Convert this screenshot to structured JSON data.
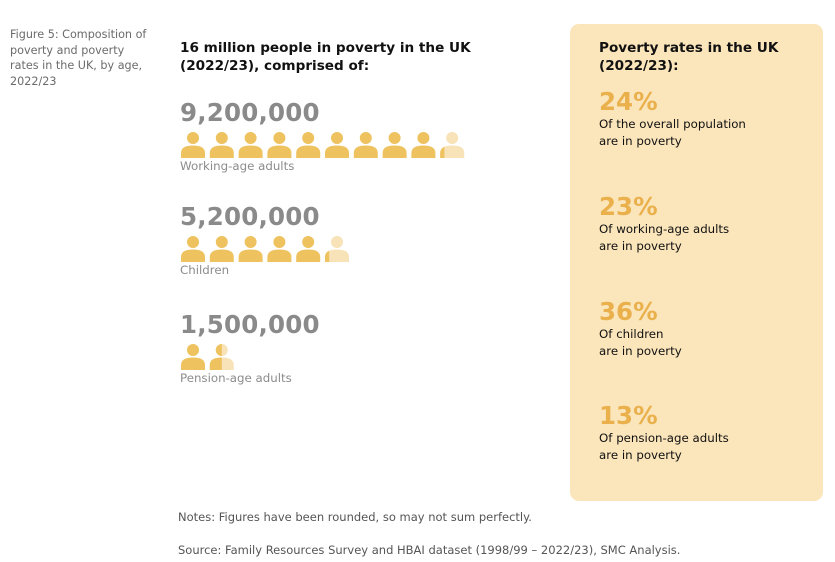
{
  "figure_caption": "Figure 5: Composition of poverty and poverty rates in the UK, by age, 2022/23",
  "headline": "16 million people in poverty in the UK (2022/23), comprised of:",
  "colors": {
    "icon_full": "#eec25e",
    "icon_faded": "#f8e3b8",
    "panel_bg": "#fbe5bb",
    "percent": "#eab04c",
    "count": "#8a8a8a"
  },
  "chart_data": [
    {
      "type": "pictogram",
      "categories": [
        "Working-age adults",
        "Children",
        "Pension-age adults"
      ],
      "values": [
        9200000,
        5200000,
        1500000
      ],
      "value_labels": [
        "9,200,000",
        "5,200,000",
        "1,500,000"
      ],
      "icon_counts": [
        9.2,
        5.2,
        1.5
      ],
      "icon_unit_people": 1000000,
      "title": "16 million people in poverty in the UK (2022/23), comprised of:"
    },
    {
      "type": "table",
      "title": "Poverty rates in the UK (2022/23):",
      "rows": [
        {
          "value": 24,
          "label": "24%",
          "description": "Of the overall population\nare in poverty"
        },
        {
          "value": 23,
          "label": "23%",
          "description": "Of working-age adults\nare in poverty"
        },
        {
          "value": 36,
          "label": "36%",
          "description": "Of children\nare in poverty"
        },
        {
          "value": 13,
          "label": "13%",
          "description": "Of pension-age adults\nare in poverty"
        }
      ]
    }
  ],
  "notes": "Notes: Figures have been rounded, so may not sum perfectly.",
  "source": "Source: Family Resources Survey and HBAI dataset (1998/99 – 2022/23), SMC Analysis."
}
